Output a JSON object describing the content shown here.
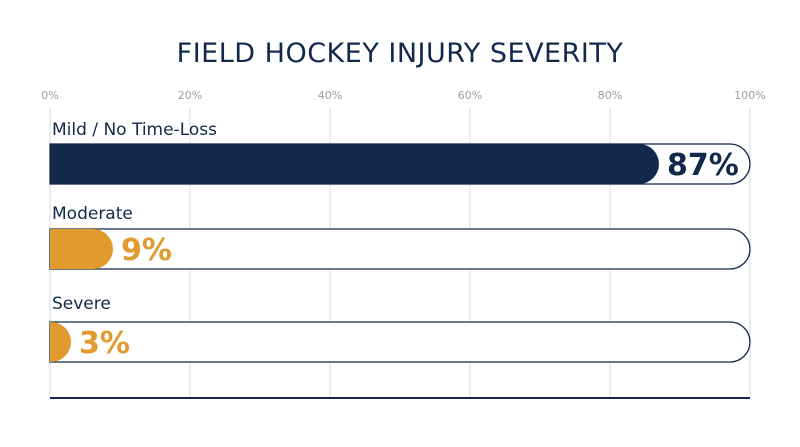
{
  "colors": {
    "navy": "#13294b",
    "gold": "#e09a2d",
    "grid": "#d6d8dc",
    "tick_text": "#9a9ea6",
    "track_border": "#13294b"
  },
  "chart_data": {
    "type": "bar",
    "orientation": "horizontal",
    "title": "FIELD HOCKEY INJURY SEVERITY",
    "xlim": [
      0,
      100
    ],
    "ticks": [
      0,
      20,
      40,
      60,
      80,
      100
    ],
    "tick_labels": [
      "0%",
      "20%",
      "40%",
      "60%",
      "80%",
      "100%"
    ],
    "grid": true,
    "categories": [
      "Mild / No Time-Loss",
      "Moderate",
      "Severe"
    ],
    "values": [
      87,
      9,
      3
    ],
    "value_labels": [
      "87%",
      "9%",
      "3%"
    ],
    "bar_colors": [
      "#13294b",
      "#e09a2d",
      "#e09a2d"
    ],
    "label_colors": [
      "#13294b",
      "#e09a2d",
      "#e09a2d"
    ]
  }
}
